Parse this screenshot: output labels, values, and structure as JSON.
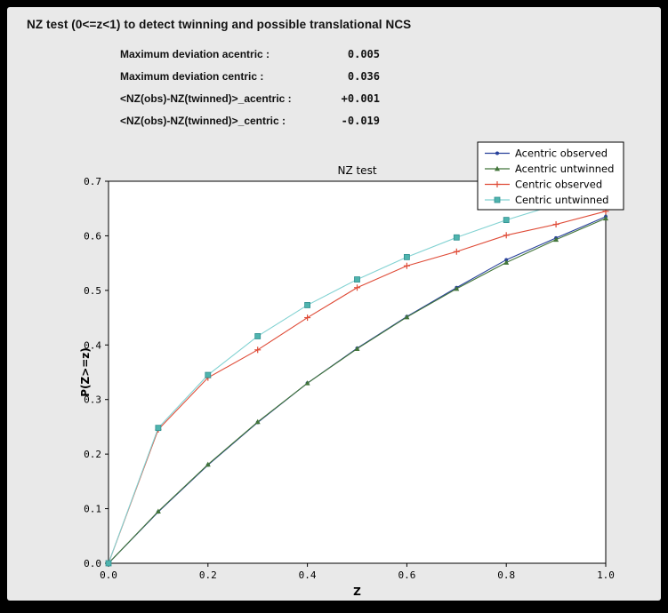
{
  "window": {
    "title": "NZ test (0<=z<1) to detect twinning and possible translational NCS"
  },
  "stats": [
    {
      "label": "Maximum deviation acentric :",
      "value": "0.005"
    },
    {
      "label": "Maximum deviation centric :",
      "value": "0.036"
    },
    {
      "label": "<NZ(obs)-NZ(twinned)>_acentric :",
      "value": "+0.001"
    },
    {
      "label": "<NZ(obs)-NZ(twinned)>_centric :",
      "value": "-0.019"
    }
  ],
  "chart_data": {
    "type": "line",
    "title": "NZ test",
    "xlabel": "Z",
    "ylabel": "P(Z>=z)",
    "xlim": [
      0.0,
      1.0
    ],
    "ylim": [
      0.0,
      0.7
    ],
    "xticks": [
      0.0,
      0.2,
      0.4,
      0.6,
      0.8,
      1.0
    ],
    "yticks": [
      0.0,
      0.1,
      0.2,
      0.3,
      0.4,
      0.5,
      0.6,
      0.7
    ],
    "grid": false,
    "legend_position": "upper right",
    "plot_bg": "#ffffff",
    "x": [
      0.0,
      0.1,
      0.2,
      0.3,
      0.4,
      0.5,
      0.6,
      0.7,
      0.8,
      0.9,
      1.0
    ],
    "series": [
      {
        "name": "Acentric observed",
        "color": "#27409b",
        "marker": "dot",
        "values": [
          0.0,
          0.094,
          0.18,
          0.258,
          0.33,
          0.394,
          0.452,
          0.505,
          0.556,
          0.596,
          0.635
        ]
      },
      {
        "name": "Acentric untwinned",
        "color": "#42753a",
        "marker": "triangle",
        "values": [
          0.0,
          0.095,
          0.181,
          0.259,
          0.33,
          0.393,
          0.451,
          0.503,
          0.551,
          0.593,
          0.632
        ]
      },
      {
        "name": "Centric observed",
        "color": "#df4b37",
        "marker": "plus",
        "values": [
          0.0,
          0.245,
          0.34,
          0.391,
          0.45,
          0.505,
          0.545,
          0.571,
          0.601,
          0.621,
          0.645
        ]
      },
      {
        "name": "Centric untwinned",
        "color": "#82d2d2",
        "marker": "square",
        "marker_color": "#4fb4ae",
        "marker_edge": "#2e8f8f",
        "values": [
          0.0,
          0.248,
          0.345,
          0.416,
          0.473,
          0.52,
          0.561,
          0.597,
          0.629,
          0.657,
          0.683
        ]
      }
    ]
  }
}
